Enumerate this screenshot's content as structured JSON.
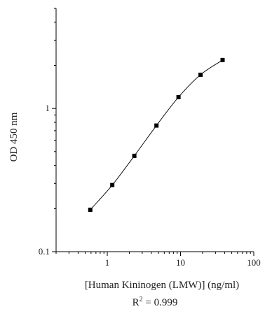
{
  "chart_data": {
    "type": "scatter",
    "title": "",
    "xlabel": "[Human Kininogen (LMW)] (ng/ml)",
    "ylabel": "OD 450 nm",
    "x_scale": "log",
    "y_scale": "log",
    "xlim": [
      0.2,
      100
    ],
    "ylim": [
      0.1,
      5
    ],
    "x_ticks": [
      {
        "value": 1,
        "label": "1"
      },
      {
        "value": 10,
        "label": "10"
      },
      {
        "value": 100,
        "label": "100"
      }
    ],
    "y_ticks": [
      {
        "value": 0.1,
        "label": "0.1"
      },
      {
        "value": 1,
        "label": "1"
      }
    ],
    "grid": false,
    "series": [
      {
        "x": [
          0.586,
          1.17,
          2.34,
          4.69,
          9.38,
          18.75,
          37.5
        ],
        "y": [
          0.196,
          0.292,
          0.467,
          0.76,
          1.2,
          1.72,
          2.18
        ]
      }
    ],
    "annotation": {
      "prefix": "R",
      "superscript": "2",
      "suffix": " = 0.999"
    },
    "colors": {
      "axis": "#000000",
      "curve": "#111111",
      "marker": "#000000"
    }
  }
}
